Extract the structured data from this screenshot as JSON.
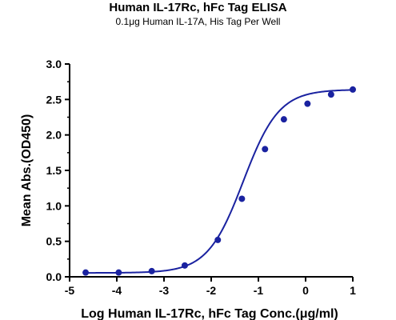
{
  "chart_data": {
    "type": "scatter",
    "title": "Human IL-17Rc, hFc Tag ELISA",
    "subtitle": "0.1μg Human IL-17A, His Tag Per Well",
    "xlabel": "Log Human IL-17Rc, hFc Tag Conc.(μg/ml)",
    "ylabel": "Mean Abs.(OD450)",
    "xlim": [
      -5,
      1
    ],
    "ylim": [
      0,
      3.0
    ],
    "xticks": [
      "-5",
      "-4",
      "-3",
      "-2",
      "-1",
      "0",
      "1"
    ],
    "yticks": [
      "0.0",
      "0.5",
      "1.0",
      "1.5",
      "2.0",
      "2.5",
      "3.0"
    ],
    "grid": false,
    "series": [
      {
        "x": [
          -4.66,
          -3.96,
          -3.26,
          -2.56,
          -1.86,
          -1.35,
          -0.86,
          -0.46,
          0.04,
          0.54,
          1.0
        ],
        "y": [
          0.06,
          0.06,
          0.08,
          0.16,
          0.52,
          1.1,
          1.8,
          2.22,
          2.44,
          2.57,
          2.64
        ],
        "color": "#1a22a0",
        "fit": "4PL sigmoid curve"
      }
    ]
  }
}
